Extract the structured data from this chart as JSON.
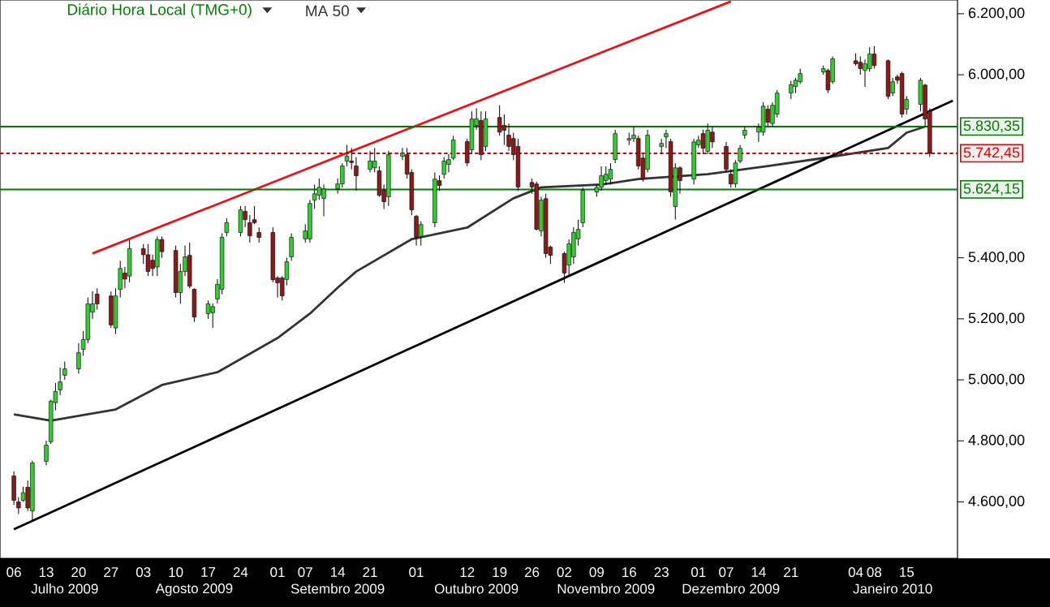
{
  "chart_data": {
    "type": "candlestick",
    "title": "Diário Hora Local (TMG+0)",
    "x": [
      "2009-07-06",
      "2009-07-07",
      "2009-07-08",
      "2009-07-09",
      "2009-07-10",
      "2009-07-13",
      "2009-07-14",
      "2009-07-15",
      "2009-07-16",
      "2009-07-17",
      "2009-07-20",
      "2009-07-21",
      "2009-07-22",
      "2009-07-23",
      "2009-07-24",
      "2009-07-27",
      "2009-07-28",
      "2009-07-29",
      "2009-07-30",
      "2009-07-31",
      "2009-08-03",
      "2009-08-04",
      "2009-08-05",
      "2009-08-06",
      "2009-08-07",
      "2009-08-10",
      "2009-08-11",
      "2009-08-12",
      "2009-08-13",
      "2009-08-14",
      "2009-08-17",
      "2009-08-18",
      "2009-08-19",
      "2009-08-20",
      "2009-08-21",
      "2009-08-24",
      "2009-08-25",
      "2009-08-26",
      "2009-08-27",
      "2009-08-28",
      "2009-08-31",
      "2009-09-01",
      "2009-09-02",
      "2009-09-03",
      "2009-09-04",
      "2009-09-07",
      "2009-09-08",
      "2009-09-09",
      "2009-09-10",
      "2009-09-11",
      "2009-09-14",
      "2009-09-15",
      "2009-09-16",
      "2009-09-17",
      "2009-09-18",
      "2009-09-21",
      "2009-09-22",
      "2009-09-23",
      "2009-09-24",
      "2009-09-25",
      "2009-09-28",
      "2009-09-29",
      "2009-09-30",
      "2009-10-01",
      "2009-10-02",
      "2009-10-05",
      "2009-10-06",
      "2009-10-07",
      "2009-10-08",
      "2009-10-09",
      "2009-10-12",
      "2009-10-13",
      "2009-10-14",
      "2009-10-15",
      "2009-10-16",
      "2009-10-19",
      "2009-10-20",
      "2009-10-21",
      "2009-10-22",
      "2009-10-23",
      "2009-10-26",
      "2009-10-27",
      "2009-10-28",
      "2009-10-29",
      "2009-10-30",
      "2009-11-02",
      "2009-11-03",
      "2009-11-04",
      "2009-11-05",
      "2009-11-06",
      "2009-11-09",
      "2009-11-10",
      "2009-11-11",
      "2009-11-12",
      "2009-11-13",
      "2009-11-16",
      "2009-11-17",
      "2009-11-18",
      "2009-11-19",
      "2009-11-20",
      "2009-11-23",
      "2009-11-24",
      "2009-11-25",
      "2009-11-26",
      "2009-11-27",
      "2009-11-30",
      "2009-12-01",
      "2009-12-02",
      "2009-12-03",
      "2009-12-04",
      "2009-12-07",
      "2009-12-08",
      "2009-12-09",
      "2009-12-10",
      "2009-12-11",
      "2009-12-14",
      "2009-12-15",
      "2009-12-16",
      "2009-12-17",
      "2009-12-18",
      "2009-12-21",
      "2009-12-22",
      "2009-12-23",
      "2009-12-28",
      "2009-12-29",
      "2009-12-30",
      "2010-01-04",
      "2010-01-05",
      "2010-01-06",
      "2010-01-07",
      "2010-01-08",
      "2010-01-11",
      "2010-01-12",
      "2010-01-13",
      "2010-01-14",
      "2010-01-15",
      "2010-01-18",
      "2010-01-19",
      "2010-01-20"
    ],
    "ohlc": [
      [
        4685,
        4700,
        4590,
        4605
      ],
      [
        4600,
        4615,
        4560,
        4580
      ],
      [
        4605,
        4650,
        4600,
        4630
      ],
      [
        4648,
        4670,
        4570,
        4580
      ],
      [
        4570,
        4735,
        4535,
        4728
      ],
      [
        4733,
        4800,
        4720,
        4786
      ],
      [
        4797,
        4935,
        4790,
        4930
      ],
      [
        4925,
        4990,
        4900,
        4962
      ],
      [
        4967,
        5040,
        4950,
        4993
      ],
      [
        5015,
        5060,
        5000,
        5036
      ],
      [
        5036,
        5120,
        5020,
        5089
      ],
      [
        5100,
        5160,
        5080,
        5132
      ],
      [
        5132,
        5270,
        5120,
        5249
      ],
      [
        5222,
        5290,
        5200,
        5249
      ],
      [
        5281,
        5300,
        5230,
        5249
      ],
      [
        5275,
        5290,
        5170,
        5180
      ],
      [
        5170,
        5300,
        5150,
        5275
      ],
      [
        5296,
        5390,
        5270,
        5365
      ],
      [
        5350,
        5370,
        5300,
        5330
      ],
      [
        5340,
        5460,
        5320,
        5430
      ],
      [
        5430,
        5445,
        5380,
        5410
      ],
      [
        5410,
        5445,
        5340,
        5355
      ],
      [
        5392,
        5410,
        5340,
        5365
      ],
      [
        5370,
        5470,
        5340,
        5460
      ],
      [
        5460,
        5470,
        5400,
        5420
      ],
      [
        5424,
        5440,
        5270,
        5286
      ],
      [
        5286,
        5380,
        5250,
        5355
      ],
      [
        5355,
        5440,
        5340,
        5403
      ],
      [
        5408,
        5450,
        5300,
        5307
      ],
      [
        5297,
        5300,
        5190,
        5206
      ],
      [
        5217,
        5260,
        5200,
        5249
      ],
      [
        5220,
        5250,
        5170,
        5240
      ],
      [
        5265,
        5330,
        5250,
        5313
      ],
      [
        5297,
        5480,
        5280,
        5467
      ],
      [
        5483,
        5530,
        5470,
        5515
      ],
      [
        5483,
        5570,
        5470,
        5557
      ],
      [
        5552,
        5570,
        5500,
        5525
      ],
      [
        5515,
        5540,
        5450,
        5472
      ],
      [
        5525,
        5570,
        5510,
        5515
      ],
      [
        5483,
        5500,
        5450,
        5467
      ],
      [
        5483,
        5500,
        5320,
        5328
      ],
      [
        5334,
        5340,
        5270,
        5318
      ],
      [
        5334,
        5340,
        5260,
        5275
      ],
      [
        5329,
        5400,
        5310,
        5387
      ],
      [
        5403,
        5480,
        5390,
        5467
      ],
      [
        5462,
        5510,
        5450,
        5488
      ],
      [
        5462,
        5590,
        5450,
        5578
      ],
      [
        5589,
        5640,
        5560,
        5610
      ],
      [
        5605,
        5660,
        5590,
        5631
      ],
      [
        5594,
        5640,
        5536,
        5626
      ],
      [
        5626,
        5660,
        5610,
        5642
      ],
      [
        5642,
        5710,
        5630,
        5701
      ],
      [
        5717,
        5770,
        5700,
        5733
      ],
      [
        5717,
        5760,
        5690,
        5712
      ],
      [
        5701,
        5730,
        5621,
        5669
      ],
      [
        5690,
        5750,
        5680,
        5717
      ],
      [
        5695,
        5760,
        5680,
        5717
      ],
      [
        5685,
        5700,
        5600,
        5605
      ],
      [
        5621,
        5640,
        5560,
        5584
      ],
      [
        5600,
        5750,
        5570,
        5738
      ],
      [
        5733,
        5760,
        5720,
        5743
      ],
      [
        5738,
        5760,
        5660,
        5674
      ],
      [
        5680,
        5690,
        5540,
        5557
      ],
      [
        5536,
        5540,
        5440,
        5467
      ],
      [
        5470,
        5520,
        5440,
        5509
      ],
      [
        5515,
        5680,
        5500,
        5658
      ],
      [
        5653,
        5670,
        5620,
        5637
      ],
      [
        5674,
        5730,
        5660,
        5717
      ],
      [
        5706,
        5740,
        5680,
        5722
      ],
      [
        5727,
        5800,
        5720,
        5786
      ],
      [
        5781,
        5790,
        5700,
        5711
      ],
      [
        5754,
        5880,
        5740,
        5855
      ],
      [
        5834,
        5890,
        5820,
        5855
      ],
      [
        5850,
        5880,
        5720,
        5738
      ],
      [
        5765,
        5880,
        5750,
        5855
      ],
      [
        5860,
        5900,
        5800,
        5812
      ],
      [
        5834,
        5870,
        5770,
        5818
      ],
      [
        5802,
        5840,
        5750,
        5765
      ],
      [
        5791,
        5810,
        5720,
        5738
      ],
      [
        5765,
        5790,
        5620,
        5632
      ],
      [
        5647,
        5660,
        5610,
        5632
      ],
      [
        5642,
        5650,
        5490,
        5493
      ],
      [
        5488,
        5600,
        5470,
        5589
      ],
      [
        5594,
        5610,
        5400,
        5414
      ],
      [
        5435,
        5440,
        5380,
        5408
      ],
      [
        5414,
        5420,
        5318,
        5350
      ],
      [
        5376,
        5460,
        5340,
        5446
      ],
      [
        5403,
        5500,
        5380,
        5483
      ],
      [
        5462,
        5525,
        5440,
        5493
      ],
      [
        5515,
        5630,
        5500,
        5621
      ],
      [
        5616,
        5640,
        5600,
        5631
      ],
      [
        5631,
        5700,
        5620,
        5669
      ],
      [
        5653,
        5700,
        5640,
        5674
      ],
      [
        5658,
        5710,
        5640,
        5690
      ],
      [
        5722,
        5820,
        5710,
        5807
      ],
      [
        5786,
        5810,
        5770,
        5791
      ],
      [
        5791,
        5830,
        5780,
        5802
      ],
      [
        5791,
        5800,
        5690,
        5701
      ],
      [
        5727,
        5740,
        5650,
        5658
      ],
      [
        5690,
        5820,
        5680,
        5802
      ],
      [
        5765,
        5790,
        5740,
        5775
      ],
      [
        5796,
        5820,
        5760,
        5807
      ],
      [
        5781,
        5790,
        5600,
        5616
      ],
      [
        5568,
        5710,
        5525,
        5695
      ],
      [
        5695,
        5700,
        5610,
        5653
      ],
      [
        5658,
        5790,
        5640,
        5780
      ],
      [
        5770,
        5800,
        5760,
        5786
      ],
      [
        5807,
        5820,
        5740,
        5759
      ],
      [
        5749,
        5840,
        5740,
        5818
      ],
      [
        5812,
        5830,
        5760,
        5780
      ],
      [
        5765,
        5780,
        5680,
        5690
      ],
      [
        5674,
        5690,
        5630,
        5642
      ],
      [
        5642,
        5720,
        5630,
        5711
      ],
      [
        5717,
        5770,
        5710,
        5759
      ],
      [
        5802,
        5830,
        5790,
        5818
      ],
      [
        5812,
        5840,
        5780,
        5828
      ],
      [
        5812,
        5910,
        5800,
        5897
      ],
      [
        5887,
        5900,
        5830,
        5844
      ],
      [
        5840,
        5910,
        5830,
        5900
      ],
      [
        5871,
        5950,
        5860,
        5940
      ],
      [
        5940,
        5980,
        5920,
        5967
      ],
      [
        5961,
        5990,
        5940,
        5982
      ],
      [
        5977,
        6020,
        5970,
        6004
      ],
      [
        6009,
        6030,
        6000,
        6020
      ],
      [
        6014,
        6020,
        5940,
        5950
      ],
      [
        5977,
        6060,
        5970,
        6052
      ],
      [
        6046,
        6070,
        6030,
        6036
      ],
      [
        6041,
        6060,
        6000,
        6020
      ],
      [
        6014,
        6050,
        5960,
        6036
      ],
      [
        6020,
        6090,
        6010,
        6068
      ],
      [
        6068,
        6094,
        6020,
        6030
      ],
      [
        6046,
        6050,
        5920,
        5929
      ],
      [
        5940,
        5990,
        5930,
        5977
      ],
      [
        5993,
        6000,
        5970,
        5982
      ],
      [
        6004,
        6010,
        5860,
        5871
      ],
      [
        5887,
        5930,
        5870,
        5919
      ],
      [
        5903,
        5990,
        5880,
        5982
      ],
      [
        5966,
        5970,
        5830,
        5855
      ],
      [
        5881,
        5890,
        5730,
        5742
      ]
    ],
    "series": [
      {
        "name": "MA 50",
        "type": "line",
        "color": "#333333",
        "x": [
          "2009-07-06",
          "2009-07-14",
          "2009-07-28",
          "2009-08-07",
          "2009-08-19",
          "2009-09-01",
          "2009-09-08",
          "2009-09-14",
          "2009-09-18",
          "2009-09-30",
          "2009-10-12",
          "2009-10-22",
          "2009-10-28",
          "2009-11-10",
          "2009-11-18",
          "2009-12-03",
          "2009-12-16",
          "2009-12-28",
          "2010-01-11",
          "2010-01-15",
          "2010-01-19"
        ],
        "values": [
          4887,
          4866,
          4903,
          4983,
          5025,
          5137,
          5217,
          5302,
          5355,
          5461,
          5499,
          5595,
          5631,
          5640,
          5658,
          5674,
          5701,
          5727,
          5760,
          5810,
          5830
        ]
      },
      {
        "type": "line",
        "color": "#e8141b",
        "x": [
          "2009-07-23",
          "2009-12-08"
        ],
        "values": [
          5414,
          6240
        ]
      },
      {
        "type": "line",
        "color": "#000000",
        "x": [
          "2009-07-06",
          "2010-01-25"
        ],
        "values": [
          4510,
          5915
        ]
      }
    ],
    "ylim": [
      4415,
      6245
    ],
    "yticks": [
      {
        "value": 4600,
        "label": "4.600,00"
      },
      {
        "value": 4800,
        "label": "4.800,00"
      },
      {
        "value": 5000,
        "label": "5.000,00"
      },
      {
        "value": 5200,
        "label": "5.200,00"
      },
      {
        "value": 5400,
        "label": "5.400,00"
      },
      {
        "value": 6000,
        "label": "6.000,00"
      },
      {
        "value": 6200,
        "label": "6.200,00"
      }
    ],
    "xlim": [
      "2009-07-03",
      "2010-01-26"
    ],
    "xticks": [
      {
        "value": "2009-07-06",
        "label": "06"
      },
      {
        "value": "2009-07-13",
        "label": "13"
      },
      {
        "value": "2009-07-20",
        "label": "20"
      },
      {
        "value": "2009-07-27",
        "label": "27"
      },
      {
        "value": "2009-08-03",
        "label": "03"
      },
      {
        "value": "2009-08-10",
        "label": "10"
      },
      {
        "value": "2009-08-17",
        "label": "17"
      },
      {
        "value": "2009-08-24",
        "label": "24"
      },
      {
        "value": "2009-09-01",
        "label": "01"
      },
      {
        "value": "2009-09-07",
        "label": "07"
      },
      {
        "value": "2009-09-14",
        "label": "14"
      },
      {
        "value": "2009-09-21",
        "label": "21"
      },
      {
        "value": "2009-10-01",
        "label": "01"
      },
      {
        "value": "2009-10-12",
        "label": "12"
      },
      {
        "value": "2009-10-19",
        "label": "19"
      },
      {
        "value": "2009-10-26",
        "label": "26"
      },
      {
        "value": "2009-11-02",
        "label": "02"
      },
      {
        "value": "2009-11-09",
        "label": "09"
      },
      {
        "value": "2009-11-16",
        "label": "16"
      },
      {
        "value": "2009-11-23",
        "label": "23"
      },
      {
        "value": "2009-12-01",
        "label": "01"
      },
      {
        "value": "2009-12-07",
        "label": "07"
      },
      {
        "value": "2009-12-14",
        "label": "14"
      },
      {
        "value": "2009-12-21",
        "label": "21"
      },
      {
        "value": "2010-01-04",
        "label": "04"
      },
      {
        "value": "2010-01-08",
        "label": "08"
      },
      {
        "value": "2010-01-15",
        "label": "15"
      }
    ],
    "x2lim": [
      "2009-07-03",
      "2010-01-26"
    ],
    "x2ticks": [
      {
        "value": "2009-07-17",
        "label": "Julho 2009"
      },
      {
        "value": "2009-08-14",
        "label": "Agosto 2009"
      },
      {
        "value": "2009-09-14",
        "label": "Setembro 2009"
      },
      {
        "value": "2009-10-14",
        "label": "Outubro 2009"
      },
      {
        "value": "2009-11-11",
        "label": "Novembro 2009"
      },
      {
        "value": "2009-12-08",
        "label": "Dezembro 2009"
      },
      {
        "value": "2010-01-12",
        "label": "Janeiro 2010"
      }
    ],
    "ref_lines": [
      {
        "axis": "y",
        "value": 5830.35,
        "label": "5.830,35",
        "color": "#007a00",
        "line_style": "solid"
      },
      {
        "axis": "y",
        "value": 5742.45,
        "label": "5.742,45",
        "color": "#e00000",
        "line_style": "dotted"
      },
      {
        "axis": "y",
        "value": 5624.15,
        "label": "5.624,15",
        "color": "#007a00",
        "line_style": "solid"
      }
    ]
  }
}
